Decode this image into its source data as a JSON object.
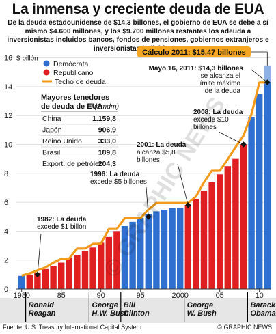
{
  "title": "La inmensa y creciente deuda de EUA",
  "subtitle": "De la deuda estadounidense de $14,3 billones, el gobierno de EUA se debe a sí mismo $4.600 millones, y los $9.700 millones restantes los adeuda a inversionistas incluidos bancos, fondos de pensiones, gobiernos extranjeros e inversionistas individuales",
  "footer": {
    "source": "Fuente: U.S. Treasury International Capital System",
    "credit": "© GRAPHIC NEWS"
  },
  "watermark": "© GRAPHIC NEWS",
  "colors": {
    "democrat": "#2f6fd0",
    "republican": "#e02020",
    "ceiling": "#f39a1b",
    "callout_bg": "#f5a623",
    "grid": "#d7d7d7",
    "president_band": "#e6e6e6"
  },
  "chart_data": {
    "type": "bar",
    "y_unit_label": "$ billón",
    "ylim": [
      0,
      16
    ],
    "y_ticks": [
      "0",
      "2",
      "4",
      "6",
      "8",
      "10",
      "12",
      "14",
      "16"
    ],
    "x_tick_labels": [
      "1980",
      "85",
      "90",
      "95",
      "2000",
      "05",
      "10"
    ],
    "x_tick_years": [
      1980,
      1985,
      1990,
      1995,
      2000,
      2005,
      2010
    ],
    "legend": {
      "democrat": "Demócrata",
      "republican": "Republicano",
      "ceiling": "Techo de deuda"
    },
    "years": [
      1980,
      1981,
      1982,
      1983,
      1984,
      1985,
      1986,
      1987,
      1988,
      1989,
      1990,
      1991,
      1992,
      1993,
      1994,
      1995,
      1996,
      1997,
      1998,
      1999,
      2000,
      2001,
      2002,
      2003,
      2004,
      2005,
      2006,
      2007,
      2008,
      2009,
      2010,
      2011
    ],
    "debt": [
      0.91,
      1.0,
      1.14,
      1.38,
      1.57,
      1.82,
      2.13,
      2.35,
      2.6,
      2.87,
      3.2,
      3.6,
      4.0,
      4.35,
      4.64,
      4.92,
      5.18,
      5.37,
      5.48,
      5.61,
      5.63,
      5.81,
      6.23,
      6.79,
      7.38,
      7.93,
      8.5,
      9.0,
      10.0,
      11.9,
      13.5,
      14.3
    ],
    "party": [
      "D",
      "R",
      "R",
      "R",
      "R",
      "R",
      "R",
      "R",
      "R",
      "R",
      "R",
      "R",
      "R",
      "D",
      "D",
      "D",
      "D",
      "D",
      "D",
      "D",
      "D",
      "R",
      "R",
      "R",
      "R",
      "R",
      "R",
      "R",
      "R",
      "D",
      "D",
      "D"
    ],
    "estimate_2011": {
      "label": "Cálculo 2011: $15,47 billones",
      "value": 15.47
    },
    "ceiling": [
      [
        1980,
        0.93
      ],
      [
        1981,
        1.08
      ],
      [
        1982,
        1.29
      ],
      [
        1983,
        1.49
      ],
      [
        1984,
        1.82
      ],
      [
        1985,
        2.08
      ],
      [
        1986,
        2.11
      ],
      [
        1987,
        2.8
      ],
      [
        1988,
        2.8
      ],
      [
        1989,
        3.12
      ],
      [
        1990,
        3.12
      ],
      [
        1991,
        4.15
      ],
      [
        1992,
        4.15
      ],
      [
        1993,
        4.9
      ],
      [
        1994,
        4.9
      ],
      [
        1995,
        4.9
      ],
      [
        1996,
        5.5
      ],
      [
        1997,
        5.95
      ],
      [
        1998,
        5.95
      ],
      [
        1999,
        5.95
      ],
      [
        2000,
        5.95
      ],
      [
        2001,
        5.95
      ],
      [
        2002,
        6.4
      ],
      [
        2003,
        7.38
      ],
      [
        2004,
        8.18
      ],
      [
        2005,
        8.18
      ],
      [
        2006,
        8.97
      ],
      [
        2007,
        9.82
      ],
      [
        2008,
        10.62
      ],
      [
        2009,
        12.1
      ],
      [
        2010,
        14.29
      ],
      [
        2011,
        14.29
      ]
    ],
    "annotations": [
      {
        "year": 1982,
        "value": 1.0,
        "text": [
          "1982: La deuda",
          "excede $1 billón"
        ]
      },
      {
        "year": 1996,
        "value": 5.0,
        "text": [
          "1996: La deuda",
          "excede $5 billones"
        ]
      },
      {
        "year": 2001,
        "value": 5.8,
        "text": [
          "2001: La deuda",
          "alcanza $5,8",
          "billones"
        ]
      },
      {
        "year": 2008,
        "value": 10.0,
        "text": [
          "2008: La deuda",
          "excede $10",
          "billones"
        ]
      },
      {
        "year": 2011,
        "value": 14.3,
        "text": [
          "Mayo 16, 2011: $14,3 billones",
          "se alcanza el",
          "límite máximo",
          "de la deuda"
        ]
      }
    ],
    "presidents": [
      {
        "name": [
          "Ronald",
          "Reagan"
        ],
        "start": 1981,
        "end": 1988
      },
      {
        "name": [
          "George",
          "H.W. Bush"
        ],
        "start": 1989,
        "end": 1992
      },
      {
        "name": [
          "Bill",
          "Clinton"
        ],
        "start": 1993,
        "end": 2000
      },
      {
        "name": [
          "George",
          "W. Bush"
        ],
        "start": 2001,
        "end": 2008
      },
      {
        "name": [
          "Barack",
          "Obama"
        ],
        "start": 2009,
        "end": 2011
      }
    ]
  },
  "holders_table": {
    "title": [
      "Mayores tenedores",
      "de deuda de EUA"
    ],
    "unit": "($mdm)",
    "rows": [
      {
        "country": "China",
        "value": "1.159,8"
      },
      {
        "country": "Japón",
        "value": "906,9"
      },
      {
        "country": "Reino Unido",
        "value": "333,0"
      },
      {
        "country": "Brasil",
        "value": "189,8"
      },
      {
        "country": "Export. de petróleo",
        "value": "204,3"
      }
    ]
  }
}
